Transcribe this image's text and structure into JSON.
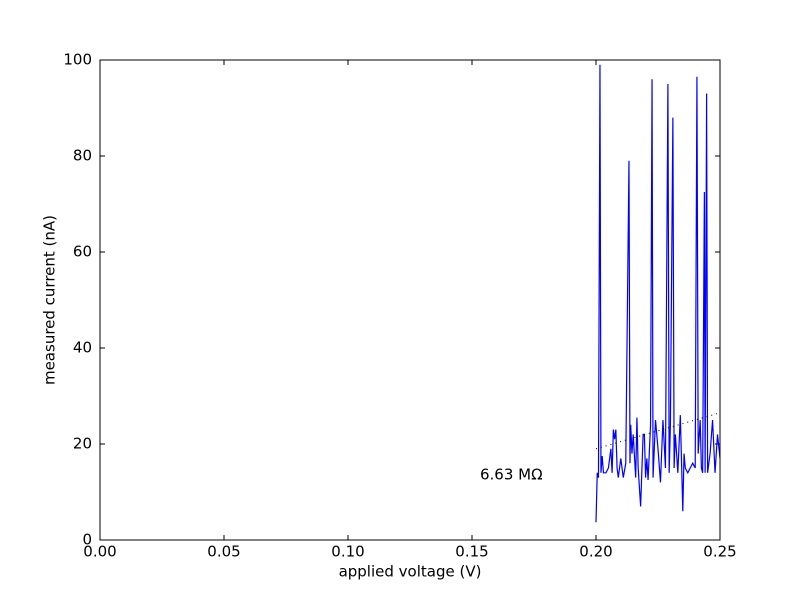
{
  "chart_data": {
    "type": "line",
    "xlabel": "applied voltage (V)",
    "ylabel": "measured current (nA)",
    "annotation": "6.63 MΩ",
    "xlim": [
      0,
      0.25
    ],
    "ylim": [
      0,
      100
    ],
    "xticks": [
      {
        "value": 0,
        "label": "0.00"
      },
      {
        "value": 0.05,
        "label": "0.05"
      },
      {
        "value": 0.1,
        "label": "0.10"
      },
      {
        "value": 0.15,
        "label": "0.15"
      },
      {
        "value": 0.2,
        "label": "0.20"
      },
      {
        "value": 0.25,
        "label": "0.25"
      }
    ],
    "yticks": [
      0,
      20,
      40,
      60,
      80,
      100
    ],
    "grid": false,
    "series": [
      {
        "color": "#0000ff",
        "style": "solid",
        "x": [
          0.2,
          0.2005,
          0.201,
          0.2016,
          0.202,
          0.2025,
          0.203,
          0.204,
          0.205,
          0.206,
          0.2065,
          0.207,
          0.2075,
          0.208,
          0.2085,
          0.209,
          0.21,
          0.211,
          0.212,
          0.2133,
          0.2137,
          0.214,
          0.2145,
          0.215,
          0.216,
          0.2165,
          0.217,
          0.218,
          0.219,
          0.2195,
          0.22,
          0.2205,
          0.221,
          0.222,
          0.2226,
          0.223,
          0.224,
          0.225,
          0.226,
          0.227,
          0.228,
          0.229,
          0.2295,
          0.23,
          0.231,
          0.2315,
          0.232,
          0.233,
          0.234,
          0.235,
          0.2355,
          0.236,
          0.237,
          0.238,
          0.239,
          0.24,
          0.2407,
          0.2412,
          0.242,
          0.2425,
          0.243,
          0.2437,
          0.244,
          0.2446,
          0.245,
          0.246,
          0.247,
          0.248,
          0.249,
          0.25
        ],
        "values": [
          3.7,
          14,
          13,
          99,
          14,
          17.5,
          14,
          14,
          15,
          19,
          14,
          23,
          21,
          23,
          15,
          13,
          17,
          13,
          16,
          79,
          16,
          24,
          18,
          22,
          13,
          25.5,
          15,
          7,
          22,
          22,
          13,
          17,
          12.5,
          24,
          96,
          13,
          25,
          19,
          12,
          25,
          15,
          95,
          14,
          24,
          88,
          15,
          22,
          14,
          26,
          6,
          18,
          15,
          14,
          15,
          16,
          15,
          96.5,
          18,
          25,
          15,
          14,
          72.5,
          14,
          93,
          14,
          18,
          25,
          14,
          22,
          17
        ]
      },
      {
        "color": "#000000",
        "style": "dotted",
        "x": [
          0.2,
          0.25
        ],
        "values": [
          19,
          26.5
        ]
      }
    ]
  }
}
